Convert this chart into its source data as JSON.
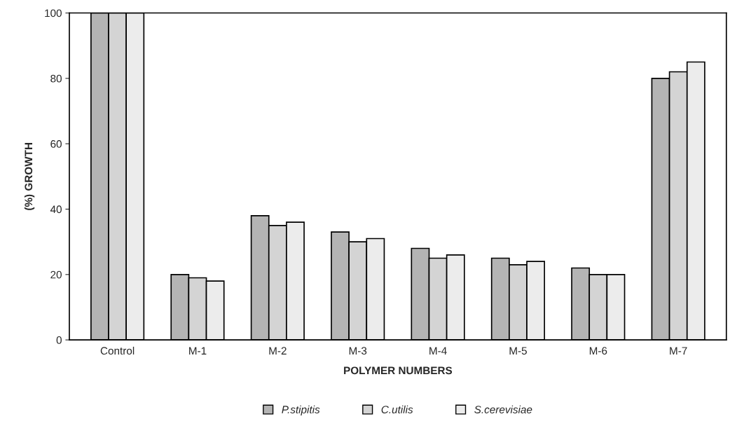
{
  "chart_data": {
    "type": "bar",
    "xlabel": "POLYMER NUMBERS",
    "ylabel": "(%) GROWTH",
    "categories": [
      "Control",
      "M-1",
      "M-2",
      "M-3",
      "M-4",
      "M-5",
      "M-6",
      "M-7"
    ],
    "series": [
      {
        "name": "P.stipitis",
        "color": "#b4b4b4",
        "values": [
          100,
          20,
          38,
          33,
          28,
          25,
          22,
          80
        ]
      },
      {
        "name": "C.utilis",
        "color": "#d4d4d4",
        "values": [
          100,
          19,
          35,
          30,
          25,
          23,
          20,
          82
        ]
      },
      {
        "name": "S.cerevisiae",
        "color": "#ececec",
        "values": [
          100,
          18,
          36,
          31,
          26,
          24,
          20,
          85
        ]
      }
    ],
    "ylim": [
      0,
      100
    ],
    "yticks": [
      0,
      20,
      40,
      60,
      80,
      100
    ],
    "grid": false,
    "legend": "bottom"
  }
}
